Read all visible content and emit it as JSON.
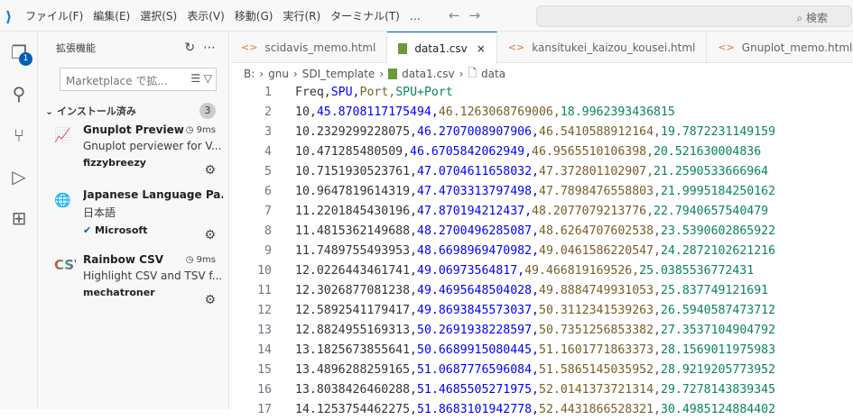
{
  "titlebar": {
    "menu": [
      "ファイル(F)",
      "編集(E)",
      "選択(S)",
      "表示(V)",
      "移動(G)",
      "実行(R)",
      "ターミナル(T)",
      "…"
    ],
    "search_placeholder": "検索"
  },
  "activity": {
    "explorer_badge": "1"
  },
  "sidebar": {
    "title": "拡張機能",
    "search_placeholder": "Marketplace で拡...",
    "section": "インストール済み",
    "count": "3",
    "extensions": [
      {
        "name": "Gnuplot Preview",
        "time": "9ms",
        "desc": "Gnuplot perviewer for V...",
        "publisher": "fizzybreezy"
      },
      {
        "name": "Japanese Language Pa...",
        "time": "",
        "desc": "日本語",
        "publisher": "Microsoft"
      },
      {
        "name": "Rainbow CSV",
        "time": "9ms",
        "desc": "Highlight CSV and TSV f...",
        "publisher": "mechatroner",
        "icon_text": "CSV"
      }
    ]
  },
  "tabs": [
    {
      "label": "scidavis_memo.html"
    },
    {
      "label": "data1.csv",
      "close": "×"
    },
    {
      "label": "kansitukei_kaizou_kousei.html"
    },
    {
      "label": "Gnuplot_memo.html"
    }
  ],
  "breadcrumb": [
    "B:",
    "gnu",
    "SDI_template",
    "data1.csv",
    "data"
  ],
  "editor": {
    "colors": [
      "#333333",
      "#0000ff",
      "#795e26",
      "#098658"
    ],
    "lines": [
      [
        "Freq",
        "SPU",
        "Port",
        "SPU+Port"
      ],
      [
        "10",
        "45.8708117175494",
        "46.1263068769006",
        "18.9962393436815"
      ],
      [
        "10.2329299228075",
        "46.2707008907906",
        "46.5410588912164",
        "19.7872231149159"
      ],
      [
        "10.471285480509",
        "46.6705842062949",
        "46.9565510106398",
        "20.521630004836"
      ],
      [
        "10.7151930523761",
        "47.0704611658032",
        "47.372801102907",
        "21.2590533666964"
      ],
      [
        "10.9647819614319",
        "47.4703313797498",
        "47.7898476558803",
        "21.9995184250162"
      ],
      [
        "11.2201845430196",
        "47.870194212437",
        "48.2077079213776",
        "22.7940657540479"
      ],
      [
        "11.4815362149688",
        "48.2700496285087",
        "48.6264707602538",
        "23.5390602865922"
      ],
      [
        "11.7489755493953",
        "48.6698969470982",
        "49.0461586220547",
        "24.2872102621216"
      ],
      [
        "12.0226443461741",
        "49.06973564817",
        "49.466819169526",
        "25.0385536772431"
      ],
      [
        "12.3026877081238",
        "49.4695648504028",
        "49.8884749931053",
        "25.837749121691"
      ],
      [
        "12.5892541179417",
        "49.8693845573037",
        "50.3112341539263",
        "26.5940587473712"
      ],
      [
        "12.8824955169313",
        "50.2691938228597",
        "50.7351256853382",
        "27.3537104904792"
      ],
      [
        "13.1825673855641",
        "50.6689915080445",
        "51.1601771863373",
        "28.1569011975983"
      ],
      [
        "13.4896288259165",
        "51.0687776596084",
        "51.5865145035952",
        "28.9219205773952"
      ],
      [
        "13.8038426460288",
        "51.4685505271975",
        "52.0141373721314",
        "29.7278143839345"
      ],
      [
        "14.1253754462275",
        "51.8683101942778",
        "52.4431866528321",
        "30.4985124884402"
      ]
    ]
  }
}
